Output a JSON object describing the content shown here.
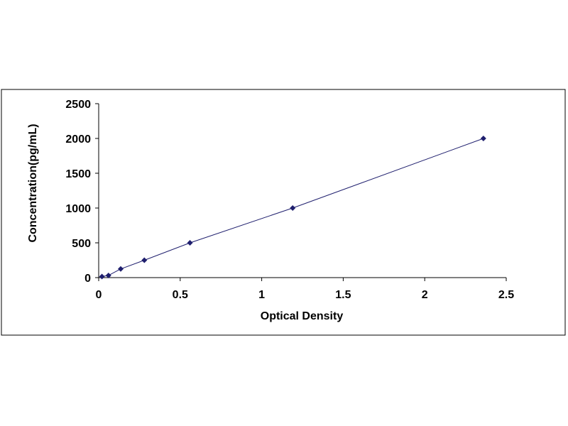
{
  "chart_data": {
    "type": "scatter",
    "title": "",
    "xlabel": "Optical Density",
    "ylabel": "Concentration(pg/mL)",
    "xlim": [
      0,
      2.5
    ],
    "ylim": [
      0,
      2500
    ],
    "x_ticks": [
      0,
      0.5,
      1,
      1.5,
      2,
      2.5
    ],
    "x_tick_labels": [
      "0",
      "0.5",
      "1",
      "1.5",
      "2",
      "2.5"
    ],
    "y_ticks": [
      0,
      500,
      1000,
      1500,
      2000,
      2500
    ],
    "y_tick_labels": [
      "0",
      "500",
      "1000",
      "1500",
      "2000",
      "2500"
    ],
    "grid": false,
    "legend": "none",
    "series": [
      {
        "x": [
          0.02,
          0.06,
          0.135,
          0.28,
          0.56,
          1.19,
          2.36
        ],
        "y": [
          15.6,
          31.2,
          125,
          250,
          500,
          1000,
          2000
        ],
        "marker": "diamond",
        "trendline": true
      }
    ],
    "colors": {
      "series": "#1f1f6e",
      "line": "#1f1f6e",
      "axis": "#000000",
      "frame": "#000000"
    }
  }
}
